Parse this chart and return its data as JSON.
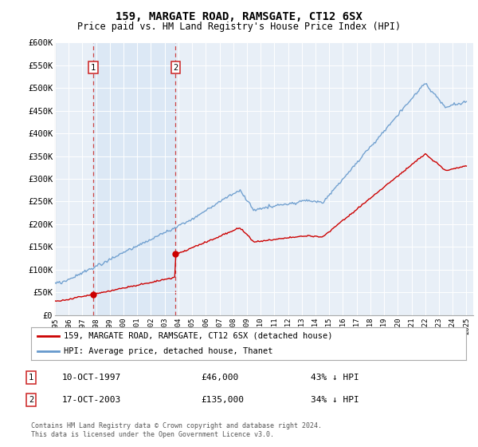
{
  "title": "159, MARGATE ROAD, RAMSGATE, CT12 6SX",
  "subtitle": "Price paid vs. HM Land Registry's House Price Index (HPI)",
  "title_fontsize": 10,
  "subtitle_fontsize": 8.5,
  "ylim": [
    0,
    600000
  ],
  "yticks": [
    0,
    50000,
    100000,
    150000,
    200000,
    250000,
    300000,
    350000,
    400000,
    450000,
    500000,
    550000,
    600000
  ],
  "ytick_labels": [
    "£0",
    "£50K",
    "£100K",
    "£150K",
    "£200K",
    "£250K",
    "£300K",
    "£350K",
    "£400K",
    "£450K",
    "£500K",
    "£550K",
    "£600K"
  ],
  "xlim_start": 1995.0,
  "xlim_end": 2025.5,
  "sale1_date": 1997.79,
  "sale1_price": 46000,
  "sale1_label": "1",
  "sale1_text": "10-OCT-1997",
  "sale1_price_text": "£46,000",
  "sale1_hpi_text": "43% ↓ HPI",
  "sale2_date": 2003.79,
  "sale2_price": 135000,
  "sale2_label": "2",
  "sale2_text": "17-OCT-2003",
  "sale2_price_text": "£135,000",
  "sale2_hpi_text": "34% ↓ HPI",
  "line_color_property": "#cc0000",
  "line_color_hpi": "#6699cc",
  "shade_color": "#dce8f5",
  "legend_label_property": "159, MARGATE ROAD, RAMSGATE, CT12 6SX (detached house)",
  "legend_label_hpi": "HPI: Average price, detached house, Thanet",
  "footnote": "Contains HM Land Registry data © Crown copyright and database right 2024.\nThis data is licensed under the Open Government Licence v3.0.",
  "background_color": "#e8eff7"
}
